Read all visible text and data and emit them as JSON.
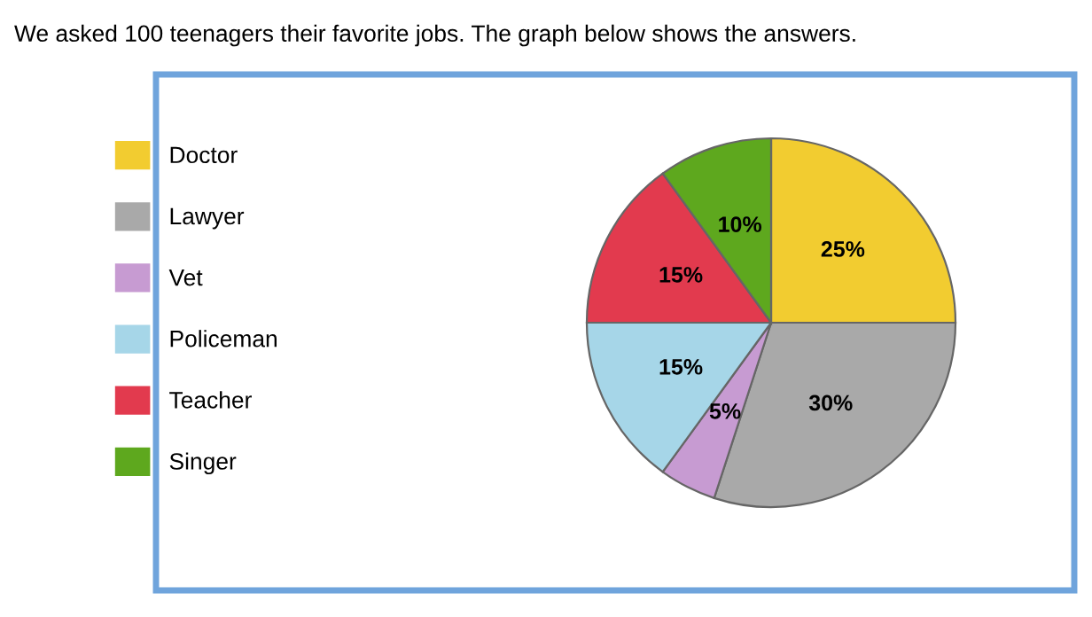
{
  "chart_data": {
    "type": "pie",
    "title": "We asked 100 teenagers their favorite jobs. The graph below shows the answers.",
    "categories": [
      "Doctor",
      "Lawyer",
      "Vet",
      "Policeman",
      "Teacher",
      "Singer"
    ],
    "values": [
      25,
      30,
      5,
      15,
      15,
      10
    ],
    "colors": [
      "#f2cc30",
      "#a9a9a9",
      "#c79bd2",
      "#a6d6e8",
      "#e23a4e",
      "#5ea81e"
    ],
    "value_labels": [
      "25%",
      "30%",
      "5%",
      "15%",
      "15%",
      "10%"
    ],
    "legend": "left"
  }
}
